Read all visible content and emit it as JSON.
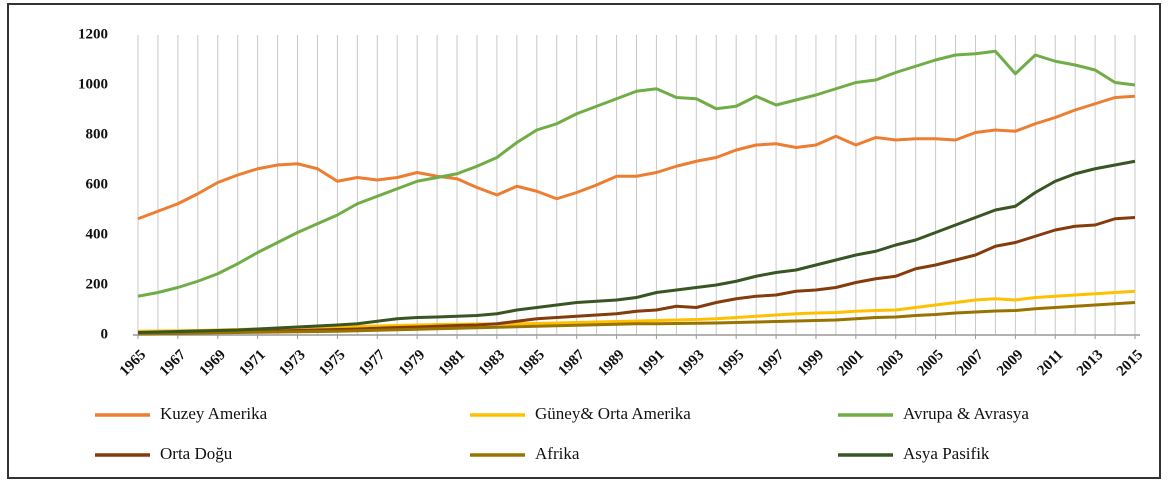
{
  "chart_data": {
    "type": "line",
    "x": [
      1965,
      1966,
      1967,
      1968,
      1969,
      1970,
      1971,
      1972,
      1973,
      1974,
      1975,
      1976,
      1977,
      1978,
      1979,
      1980,
      1981,
      1982,
      1983,
      1984,
      1985,
      1986,
      1987,
      1988,
      1989,
      1990,
      1991,
      1992,
      1993,
      1994,
      1995,
      1996,
      1997,
      1998,
      1999,
      2000,
      2001,
      2002,
      2003,
      2004,
      2005,
      2006,
      2007,
      2008,
      2009,
      2010,
      2011,
      2012,
      2013,
      2014,
      2015
    ],
    "xlim": [
      1965,
      2015
    ],
    "xticks": [
      1965,
      1967,
      1969,
      1971,
      1973,
      1975,
      1977,
      1979,
      1981,
      1983,
      1985,
      1987,
      1989,
      1991,
      1993,
      1995,
      1997,
      1999,
      2001,
      2003,
      2005,
      2007,
      2009,
      2011,
      2013,
      2015
    ],
    "ylim": [
      0,
      1200
    ],
    "yticks": [
      0,
      200,
      400,
      600,
      800,
      1000,
      1200
    ],
    "grid": true,
    "series": [
      {
        "name": "Kuzey Amerika",
        "color": "#ed7d31",
        "values": [
          465,
          495,
          525,
          565,
          610,
          640,
          665,
          680,
          685,
          665,
          615,
          630,
          620,
          630,
          650,
          635,
          625,
          590,
          560,
          595,
          575,
          545,
          570,
          600,
          635,
          635,
          650,
          675,
          695,
          710,
          740,
          760,
          765,
          750,
          760,
          795,
          760,
          790,
          780,
          785,
          785,
          780,
          810,
          820,
          815,
          845,
          870,
          900,
          925,
          950,
          955
        ]
      },
      {
        "name": "Güney& Orta Amerika",
        "color": "#ffc000",
        "values": [
          15,
          16,
          17,
          18,
          20,
          22,
          24,
          26,
          28,
          30,
          32,
          34,
          36,
          38,
          40,
          42,
          43,
          44,
          44,
          45,
          46,
          48,
          50,
          52,
          54,
          56,
          58,
          60,
          62,
          65,
          70,
          75,
          80,
          85,
          88,
          90,
          95,
          98,
          100,
          110,
          120,
          130,
          140,
          145,
          140,
          150,
          155,
          160,
          165,
          170,
          175
        ]
      },
      {
        "name": "Avrupa & Avrasya",
        "color": "#70ad47",
        "values": [
          155,
          170,
          190,
          215,
          245,
          285,
          330,
          370,
          410,
          445,
          480,
          525,
          555,
          585,
          615,
          630,
          645,
          675,
          710,
          770,
          820,
          845,
          885,
          915,
          945,
          975,
          985,
          950,
          945,
          905,
          915,
          955,
          920,
          940,
          960,
          985,
          1010,
          1020,
          1050,
          1075,
          1100,
          1120,
          1125,
          1135,
          1045,
          1120,
          1095,
          1080,
          1060,
          1010,
          1000
        ]
      },
      {
        "name": "Orta Doğu",
        "color": "#843c0c",
        "values": [
          5,
          6,
          7,
          8,
          10,
          12,
          14,
          16,
          18,
          20,
          22,
          24,
          27,
          30,
          32,
          35,
          38,
          40,
          45,
          55,
          65,
          70,
          75,
          80,
          85,
          95,
          100,
          115,
          110,
          130,
          145,
          155,
          160,
          175,
          180,
          190,
          210,
          225,
          235,
          265,
          280,
          300,
          320,
          355,
          370,
          395,
          420,
          435,
          440,
          465,
          470
        ]
      },
      {
        "name": "Afrika",
        "color": "#997300",
        "values": [
          5,
          6,
          7,
          8,
          9,
          10,
          11,
          12,
          13,
          14,
          15,
          17,
          19,
          21,
          23,
          25,
          27,
          29,
          31,
          33,
          35,
          37,
          39,
          41,
          43,
          45,
          45,
          46,
          47,
          48,
          50,
          52,
          54,
          56,
          58,
          60,
          65,
          70,
          72,
          78,
          82,
          88,
          92,
          96,
          98,
          105,
          110,
          115,
          120,
          125,
          130
        ]
      },
      {
        "name": "Asya Pasifik",
        "color": "#375623",
        "values": [
          10,
          12,
          14,
          16,
          18,
          20,
          24,
          28,
          32,
          36,
          40,
          45,
          55,
          65,
          70,
          72,
          75,
          78,
          85,
          100,
          110,
          120,
          130,
          135,
          140,
          150,
          170,
          180,
          190,
          200,
          215,
          235,
          250,
          260,
          280,
          300,
          320,
          335,
          360,
          380,
          410,
          440,
          470,
          500,
          515,
          570,
          615,
          645,
          665,
          680,
          695
        ]
      }
    ]
  }
}
